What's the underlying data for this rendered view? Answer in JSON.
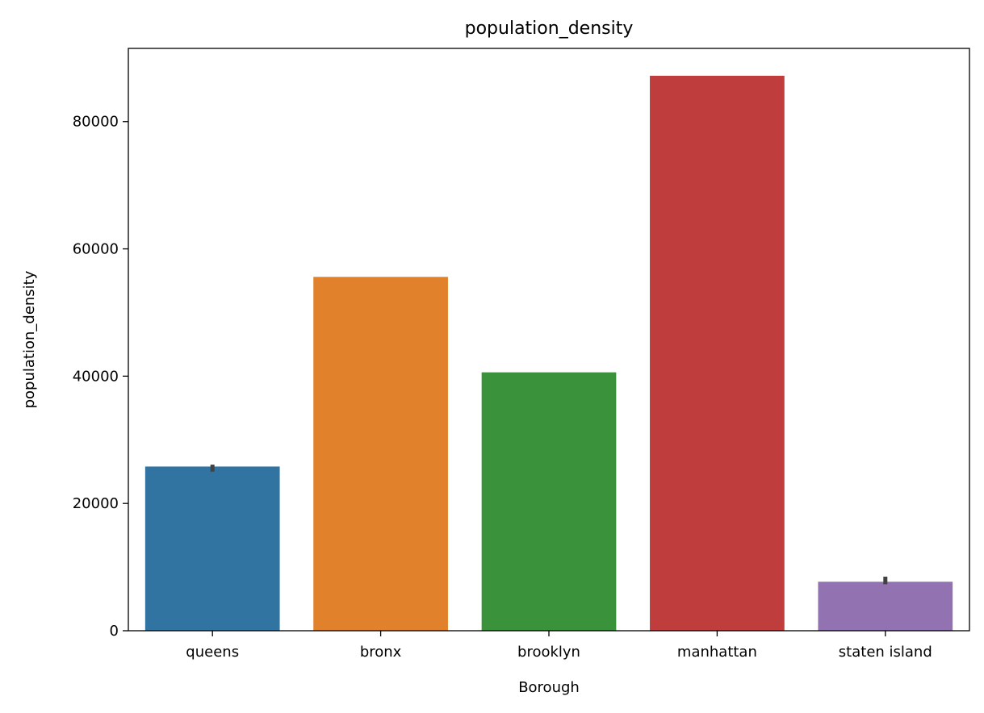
{
  "chart_data": {
    "type": "bar",
    "title": "population_density",
    "xlabel": "Borough",
    "ylabel": "population_density",
    "categories": [
      "queens",
      "bronx",
      "brooklyn",
      "manhattan",
      "staten island"
    ],
    "values": [
      25800,
      55600,
      40600,
      87200,
      7700
    ],
    "error_bars": [
      {
        "low": 25000,
        "high": 26100
      },
      null,
      null,
      null,
      {
        "low": 7300,
        "high": 8500
      }
    ],
    "colors": [
      "#3274a1",
      "#e1812c",
      "#3a923a",
      "#c03d3e",
      "#9372b2"
    ],
    "yticks": [
      0,
      20000,
      40000,
      60000,
      80000
    ],
    "ylim": [
      0,
      91500
    ],
    "grid": false,
    "legend": "none"
  }
}
